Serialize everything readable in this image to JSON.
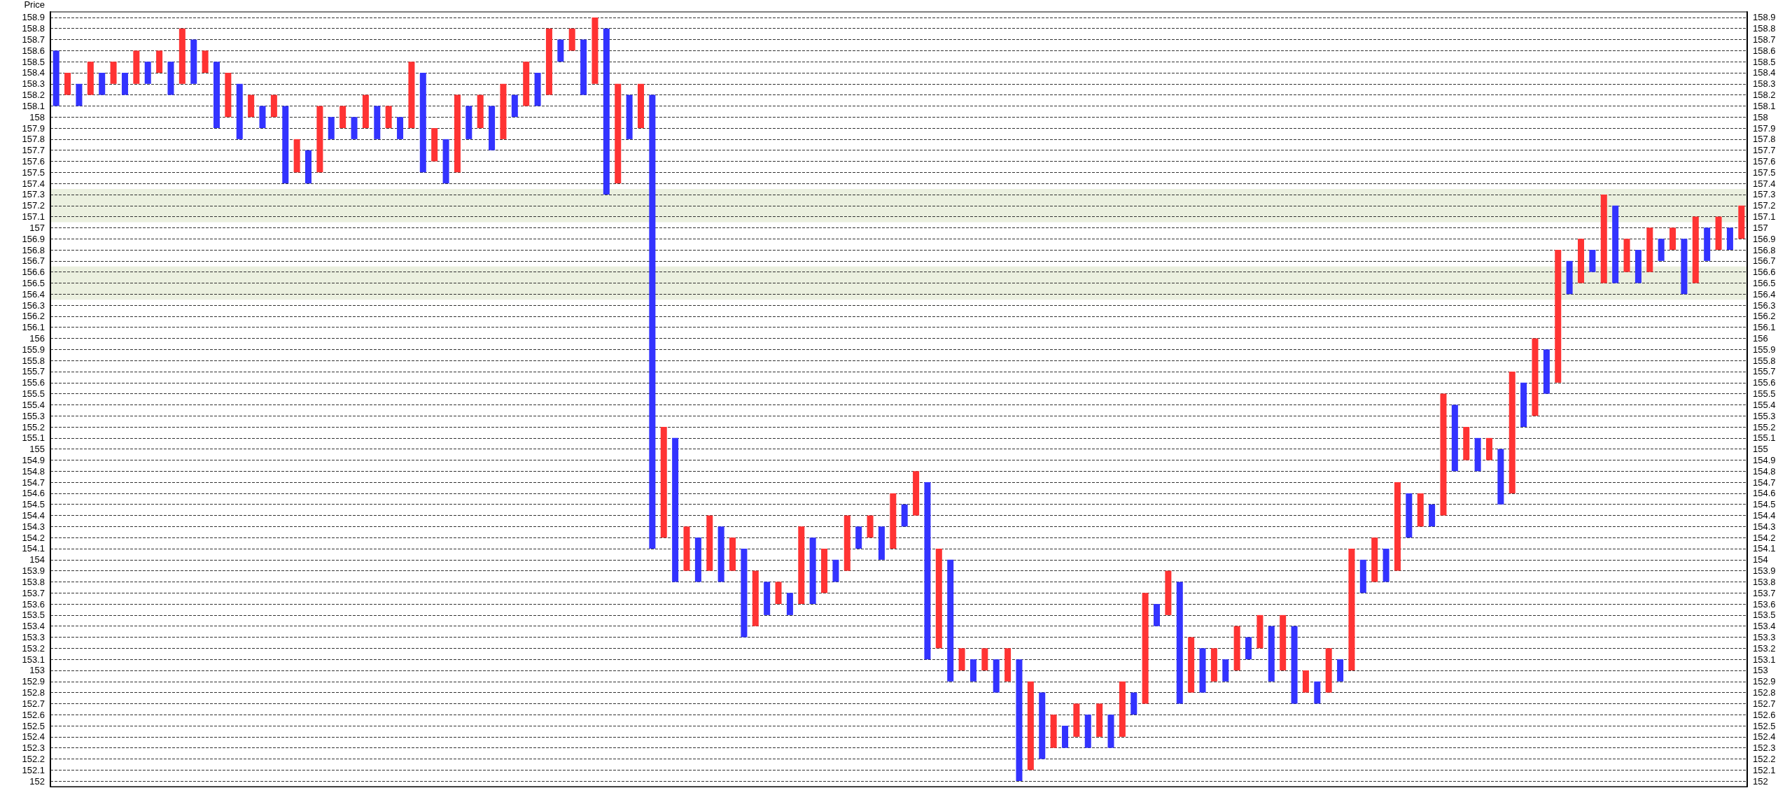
{
  "chart_data": {
    "type": "bar",
    "ylabel": "Price",
    "categories": [
      null,
      null,
      null,
      null,
      null,
      null,
      null,
      null,
      null,
      null,
      null,
      null,
      null,
      null,
      null,
      null,
      null,
      null,
      null,
      null,
      null,
      null,
      null,
      null,
      null,
      null,
      null,
      null,
      null,
      null,
      null,
      null,
      null,
      null,
      null,
      null,
      null,
      null,
      null,
      null,
      null,
      null,
      null,
      null,
      null,
      null,
      null,
      null,
      null,
      null,
      null,
      null,
      null,
      null,
      null,
      null,
      null,
      null,
      null,
      null,
      null,
      null,
      null,
      null,
      null,
      null,
      null,
      null,
      null,
      null,
      null,
      null,
      null,
      null,
      null,
      null,
      null,
      null,
      null,
      null,
      null,
      null,
      null,
      null,
      null,
      null,
      null,
      null,
      null,
      null,
      null,
      null,
      null,
      null,
      null,
      null,
      null,
      null,
      null,
      null,
      null,
      null,
      null,
      null,
      null,
      null,
      null,
      null,
      null,
      null,
      null,
      null,
      null,
      null,
      null,
      null,
      null,
      null,
      null,
      null,
      null,
      null,
      null,
      null,
      null,
      null,
      null,
      null,
      null,
      null,
      null,
      null,
      null,
      null,
      null,
      null,
      null,
      null,
      null,
      null,
      null,
      null,
      null,
      null,
      null,
      null,
      null,
      null
    ],
    "base": [
      158.1,
      158.2,
      158.1,
      158.2,
      158.2,
      158.3,
      158.2,
      158.3,
      158.3,
      158.4,
      158.2,
      158.3,
      158.3,
      158.4,
      157.9,
      158.0,
      157.8,
      158.0,
      157.9,
      158.0,
      157.4,
      157.5,
      157.4,
      157.5,
      157.8,
      157.9,
      157.8,
      157.9,
      157.8,
      157.9,
      157.8,
      157.9,
      157.5,
      157.6,
      157.4,
      157.5,
      157.8,
      157.9,
      157.7,
      157.8,
      158.0,
      158.1,
      158.1,
      158.2,
      158.5,
      158.6,
      158.2,
      158.3,
      157.3,
      157.4,
      157.8,
      157.9,
      154.1,
      154.2,
      153.8,
      153.9,
      153.8,
      153.9,
      153.8,
      153.9,
      153.3,
      153.4,
      153.5,
      153.6,
      153.5,
      153.6,
      153.6,
      153.7,
      153.8,
      153.9,
      154.1,
      154.2,
      154.0,
      154.1,
      154.3,
      154.4,
      153.1,
      153.2,
      152.9,
      153.0,
      152.9,
      153.0,
      152.8,
      152.9,
      152.0,
      152.1,
      152.2,
      152.3,
      152.3,
      152.4,
      152.3,
      152.4,
      152.3,
      152.4,
      152.6,
      152.7,
      153.4,
      153.5,
      152.7,
      152.8,
      152.8,
      152.9,
      152.9,
      153.0,
      153.1,
      153.2,
      152.9,
      153.0,
      152.7,
      152.8,
      152.7,
      152.8,
      152.9,
      153.0,
      153.7,
      153.8,
      153.8,
      153.9,
      154.2,
      154.3,
      154.3,
      154.4,
      154.8,
      154.9,
      154.8,
      154.9,
      154.5,
      154.6,
      155.2,
      155.3,
      155.5,
      155.6,
      156.4,
      156.5,
      156.6,
      156.5,
      156.5,
      156.6,
      156.5,
      156.6,
      156.7,
      156.8,
      156.4,
      156.5,
      156.7,
      156.8,
      156.8,
      156.9
    ],
    "values": [
      0.5,
      0.2,
      0.2,
      0.3,
      0.2,
      0.2,
      0.2,
      0.3,
      0.2,
      0.2,
      0.3,
      0.5,
      0.4,
      0.2,
      0.6,
      0.4,
      0.5,
      0.2,
      0.2,
      0.2,
      0.7,
      0.3,
      0.3,
      0.6,
      0.2,
      0.2,
      0.2,
      0.3,
      0.3,
      0.2,
      0.2,
      0.6,
      0.9,
      0.3,
      0.4,
      0.7,
      0.3,
      0.3,
      0.4,
      0.5,
      0.2,
      0.4,
      0.3,
      0.6,
      0.2,
      0.2,
      0.5,
      0.6,
      1.5,
      0.9,
      0.4,
      0.4,
      4.1,
      1.0,
      1.3,
      0.4,
      0.4,
      0.5,
      0.5,
      0.3,
      0.8,
      0.5,
      0.3,
      0.2,
      0.2,
      0.7,
      0.6,
      0.4,
      0.2,
      0.5,
      0.2,
      0.2,
      0.3,
      0.5,
      0.2,
      0.4,
      1.6,
      0.9,
      1.1,
      0.2,
      0.2,
      0.2,
      0.3,
      0.3,
      1.1,
      0.8,
      0.6,
      0.3,
      0.2,
      0.3,
      0.3,
      0.3,
      0.3,
      0.5,
      0.2,
      1.0,
      0.2,
      0.4,
      1.1,
      0.5,
      0.4,
      0.3,
      0.2,
      0.4,
      0.2,
      0.3,
      0.5,
      0.5,
      0.7,
      0.2,
      0.2,
      0.4,
      0.2,
      1.1,
      0.3,
      0.4,
      0.3,
      0.8,
      0.4,
      0.3,
      0.2,
      1.1,
      0.6,
      0.3,
      0.3,
      0.2,
      0.5,
      1.1,
      0.4,
      0.7,
      0.4,
      1.2,
      0.3,
      0.4,
      0.2,
      0.8,
      0.7,
      0.3,
      0.3,
      0.4,
      0.2,
      0.2,
      0.5,
      0.6,
      0.3,
      0.3,
      0.2,
      0.3
    ],
    "colors": [
      "#3333ff",
      "#ff3333",
      "#3333ff",
      "#ff3333",
      "#3333ff",
      "#ff3333",
      "#3333ff",
      "#ff3333",
      "#3333ff",
      "#ff3333",
      "#3333ff",
      "#ff3333",
      "#3333ff",
      "#ff3333",
      "#3333ff",
      "#ff3333",
      "#3333ff",
      "#ff3333",
      "#3333ff",
      "#ff3333",
      "#3333ff",
      "#ff3333",
      "#3333ff",
      "#ff3333",
      "#3333ff",
      "#ff3333",
      "#3333ff",
      "#ff3333",
      "#3333ff",
      "#ff3333",
      "#3333ff",
      "#ff3333",
      "#3333ff",
      "#ff3333",
      "#3333ff",
      "#ff3333",
      "#3333ff",
      "#ff3333",
      "#3333ff",
      "#ff3333",
      "#3333ff",
      "#ff3333",
      "#3333ff",
      "#ff3333",
      "#3333ff",
      "#ff3333",
      "#3333ff",
      "#ff3333",
      "#3333ff",
      "#ff3333",
      "#3333ff",
      "#ff3333",
      "#3333ff",
      "#ff3333",
      "#3333ff",
      "#ff3333",
      "#3333ff",
      "#ff3333",
      "#3333ff",
      "#ff3333",
      "#3333ff",
      "#ff3333",
      "#3333ff",
      "#ff3333",
      "#3333ff",
      "#ff3333",
      "#3333ff",
      "#ff3333",
      "#3333ff",
      "#ff3333",
      "#3333ff",
      "#ff3333",
      "#3333ff",
      "#ff3333",
      "#3333ff",
      "#ff3333",
      "#3333ff",
      "#ff3333",
      "#3333ff",
      "#ff3333",
      "#3333ff",
      "#ff3333",
      "#3333ff",
      "#ff3333",
      "#3333ff",
      "#ff3333",
      "#3333ff",
      "#ff3333",
      "#3333ff",
      "#ff3333",
      "#3333ff",
      "#ff3333",
      "#3333ff",
      "#ff3333",
      "#3333ff",
      "#ff3333",
      "#3333ff",
      "#ff3333",
      "#3333ff",
      "#ff3333",
      "#3333ff",
      "#ff3333",
      "#3333ff",
      "#ff3333",
      "#3333ff",
      "#ff3333",
      "#3333ff",
      "#ff3333",
      "#3333ff",
      "#ff3333",
      "#3333ff",
      "#ff3333",
      "#3333ff",
      "#ff3333",
      "#3333ff",
      "#ff3333",
      "#3333ff",
      "#ff3333",
      "#3333ff",
      "#ff3333",
      "#3333ff",
      "#ff3333",
      "#3333ff",
      "#ff3333",
      "#3333ff",
      "#ff3333",
      "#3333ff",
      "#ff3333",
      "#3333ff",
      "#ff3333",
      "#3333ff",
      "#ff3333",
      "#3333ff",
      "#ff3333",
      "#3333ff",
      "#ff3333",
      "#3333ff",
      "#ff3333",
      "#3333ff",
      "#ff3333",
      "#3333ff",
      "#ff3333",
      "#3333ff",
      "#ff3333",
      "#3333ff",
      "#ff3333",
      "#3333ff",
      "#ff3333"
    ],
    "ylim": [
      151.95,
      158.95
    ],
    "yticks": [
      152,
      152.1,
      152.2,
      152.3,
      152.4,
      152.5,
      152.6,
      152.7,
      152.8,
      152.9,
      153,
      153.1,
      153.2,
      153.3,
      153.4,
      153.5,
      153.6,
      153.7,
      153.8,
      153.9,
      154,
      154.1,
      154.2,
      154.3,
      154.4,
      154.5,
      154.6,
      154.7,
      154.8,
      154.9,
      155,
      155.1,
      155.2,
      155.3,
      155.4,
      155.5,
      155.6,
      155.7,
      155.8,
      155.9,
      156,
      156.1,
      156.2,
      156.3,
      156.4,
      156.5,
      156.6,
      156.7,
      156.8,
      156.9,
      157,
      157.1,
      157.2,
      157.3,
      157.4,
      157.5,
      157.6,
      157.7,
      157.8,
      157.9,
      158,
      158.1,
      158.2,
      158.3,
      158.4,
      158.5,
      158.6,
      158.7,
      158.8,
      158.9
    ],
    "y2lim": [
      151.95,
      158.95
    ],
    "y2ticks": [
      152,
      152.1,
      152.2,
      152.3,
      152.4,
      152.5,
      152.6,
      152.7,
      152.8,
      152.9,
      153,
      153.1,
      153.2,
      153.3,
      153.4,
      153.5,
      153.6,
      153.7,
      153.8,
      153.9,
      154,
      154.1,
      154.2,
      154.3,
      154.4,
      154.5,
      154.6,
      154.7,
      154.8,
      154.9,
      155,
      155.1,
      155.2,
      155.3,
      155.4,
      155.5,
      155.6,
      155.7,
      155.8,
      155.9,
      156,
      156.1,
      156.2,
      156.3,
      156.4,
      156.5,
      156.6,
      156.7,
      156.8,
      156.9,
      157,
      157.1,
      157.2,
      157.3,
      157.4,
      157.5,
      157.6,
      157.7,
      157.8,
      157.9,
      158,
      158.1,
      158.2,
      158.3,
      158.4,
      158.5,
      158.6,
      158.7,
      158.8,
      158.9
    ],
    "bands": [
      {
        "axis": "y",
        "from": 157.05,
        "to": 157.35,
        "color": "#ebf0df"
      },
      {
        "axis": "y",
        "from": 156.35,
        "to": 156.65,
        "color": "#ebf0df"
      }
    ],
    "grid": "y",
    "tick_labels": "y"
  }
}
